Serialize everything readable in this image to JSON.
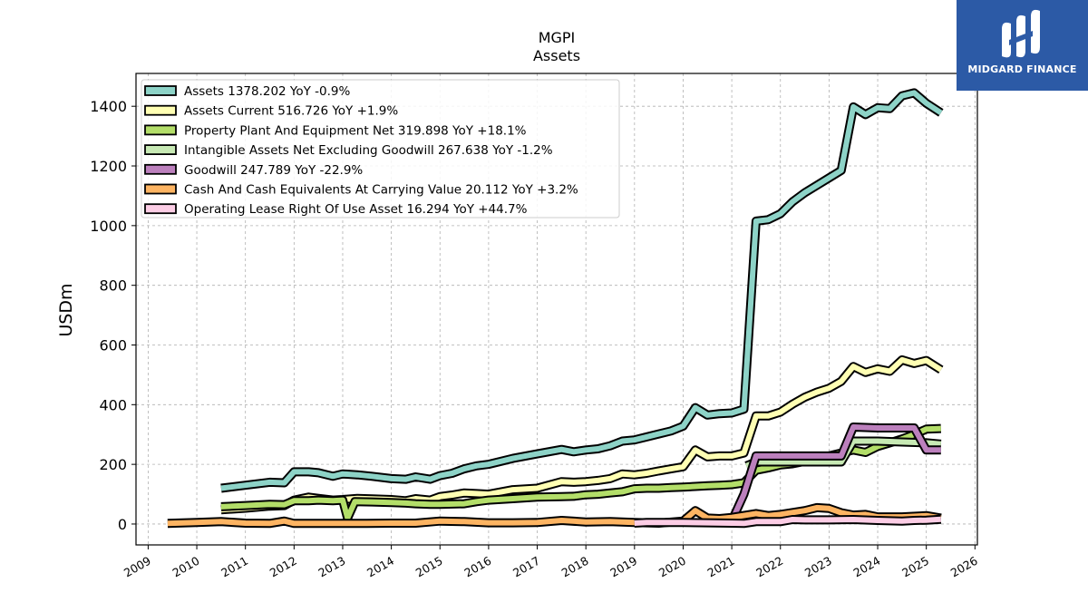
{
  "brand": {
    "name": "MIDGARD FINANCE",
    "logo_color": "#2c5aa6"
  },
  "chart_data": {
    "type": "line",
    "title": "MGPI",
    "subtitle": "Assets",
    "ylabel": "USDm",
    "xlabel": "",
    "xlim": [
      2008.75,
      2026.05
    ],
    "ylim": [
      -70,
      1510
    ],
    "x_ticks": [
      2009,
      2010,
      2011,
      2012,
      2013,
      2014,
      2015,
      2016,
      2017,
      2018,
      2019,
      2020,
      2021,
      2022,
      2023,
      2024,
      2025,
      2026
    ],
    "y_ticks": [
      0,
      200,
      400,
      600,
      800,
      1000,
      1200,
      1400
    ],
    "grid": true,
    "legend_position": "upper-left",
    "series": [
      {
        "name": "Assets",
        "legend_label": "Assets  1378.202 YoY -0.9%",
        "color": "#8dd3c7",
        "points": [
          [
            2010.5,
            120
          ],
          [
            2011.0,
            130
          ],
          [
            2011.5,
            140
          ],
          [
            2011.8,
            138
          ],
          [
            2012.0,
            175
          ],
          [
            2012.3,
            175
          ],
          [
            2012.5,
            172
          ],
          [
            2012.8,
            160
          ],
          [
            2013.0,
            168
          ],
          [
            2013.3,
            165
          ],
          [
            2013.6,
            160
          ],
          [
            2014.0,
            152
          ],
          [
            2014.3,
            150
          ],
          [
            2014.5,
            158
          ],
          [
            2014.8,
            150
          ],
          [
            2015.0,
            162
          ],
          [
            2015.25,
            170
          ],
          [
            2015.5,
            185
          ],
          [
            2015.75,
            195
          ],
          [
            2016.0,
            200
          ],
          [
            2016.5,
            220
          ],
          [
            2017.0,
            235
          ],
          [
            2017.5,
            250
          ],
          [
            2017.75,
            242
          ],
          [
            2018.0,
            248
          ],
          [
            2018.25,
            252
          ],
          [
            2018.5,
            262
          ],
          [
            2018.75,
            278
          ],
          [
            2019.0,
            282
          ],
          [
            2019.25,
            292
          ],
          [
            2019.5,
            302
          ],
          [
            2019.75,
            312
          ],
          [
            2020.0,
            328
          ],
          [
            2020.25,
            390
          ],
          [
            2020.5,
            365
          ],
          [
            2020.75,
            370
          ],
          [
            2021.0,
            372
          ],
          [
            2021.25,
            385
          ],
          [
            2021.5,
            1015
          ],
          [
            2021.75,
            1020
          ],
          [
            2022.0,
            1040
          ],
          [
            2022.25,
            1080
          ],
          [
            2022.5,
            1110
          ],
          [
            2022.75,
            1135
          ],
          [
            2023.0,
            1160
          ],
          [
            2023.25,
            1185
          ],
          [
            2023.5,
            1398
          ],
          [
            2023.75,
            1372
          ],
          [
            2024.0,
            1395
          ],
          [
            2024.25,
            1392
          ],
          [
            2024.5,
            1435
          ],
          [
            2024.75,
            1445
          ],
          [
            2025.0,
            1410
          ],
          [
            2025.3,
            1378
          ]
        ]
      },
      {
        "name": "Assets Current",
        "legend_label": "Assets Current  516.726 YoY +1.9%",
        "color": "#ffffb3",
        "points": [
          [
            2010.5,
            48
          ],
          [
            2011.0,
            53
          ],
          [
            2011.5,
            60
          ],
          [
            2011.8,
            62
          ],
          [
            2012.0,
            80
          ],
          [
            2012.3,
            90
          ],
          [
            2012.5,
            86
          ],
          [
            2012.8,
            80
          ],
          [
            2013.0,
            82
          ],
          [
            2013.3,
            86
          ],
          [
            2013.6,
            84
          ],
          [
            2014.0,
            82
          ],
          [
            2014.3,
            78
          ],
          [
            2014.5,
            85
          ],
          [
            2014.8,
            80
          ],
          [
            2015.0,
            92
          ],
          [
            2015.25,
            97
          ],
          [
            2015.5,
            104
          ],
          [
            2015.75,
            102
          ],
          [
            2016.0,
            100
          ],
          [
            2016.5,
            115
          ],
          [
            2017.0,
            120
          ],
          [
            2017.5,
            142
          ],
          [
            2017.75,
            140
          ],
          [
            2018.0,
            142
          ],
          [
            2018.25,
            146
          ],
          [
            2018.5,
            152
          ],
          [
            2018.75,
            168
          ],
          [
            2019.0,
            165
          ],
          [
            2019.25,
            170
          ],
          [
            2019.5,
            178
          ],
          [
            2019.75,
            185
          ],
          [
            2020.0,
            192
          ],
          [
            2020.25,
            248
          ],
          [
            2020.5,
            225
          ],
          [
            2020.75,
            228
          ],
          [
            2021.0,
            228
          ],
          [
            2021.25,
            238
          ],
          [
            2021.5,
            362
          ],
          [
            2021.75,
            362
          ],
          [
            2022.0,
            375
          ],
          [
            2022.25,
            402
          ],
          [
            2022.5,
            425
          ],
          [
            2022.75,
            442
          ],
          [
            2023.0,
            455
          ],
          [
            2023.25,
            478
          ],
          [
            2023.5,
            528
          ],
          [
            2023.75,
            508
          ],
          [
            2024.0,
            520
          ],
          [
            2024.25,
            512
          ],
          [
            2024.5,
            550
          ],
          [
            2024.75,
            538
          ],
          [
            2025.0,
            548
          ],
          [
            2025.3,
            517
          ]
        ]
      },
      {
        "name": "Property Plant And Equipment Net",
        "legend_label": "Property Plant And Equipment Net  319.898 YoY +18.1%",
        "color": "#b3de69",
        "points": [
          [
            2010.5,
            58
          ],
          [
            2011.0,
            62
          ],
          [
            2011.5,
            66
          ],
          [
            2011.8,
            65
          ],
          [
            2012.0,
            78
          ],
          [
            2012.3,
            78
          ],
          [
            2012.5,
            80
          ],
          [
            2012.8,
            78
          ],
          [
            2013.0,
            80
          ],
          [
            2013.1,
            20
          ],
          [
            2013.25,
            75
          ],
          [
            2013.6,
            74
          ],
          [
            2014.0,
            72
          ],
          [
            2014.3,
            70
          ],
          [
            2014.5,
            68
          ],
          [
            2014.8,
            66
          ],
          [
            2015.0,
            66
          ],
          [
            2015.5,
            68
          ],
          [
            2015.75,
            75
          ],
          [
            2016.0,
            80
          ],
          [
            2016.5,
            85
          ],
          [
            2017.0,
            90
          ],
          [
            2017.5,
            92
          ],
          [
            2017.75,
            93
          ],
          [
            2018.0,
            98
          ],
          [
            2018.25,
            100
          ],
          [
            2018.5,
            104
          ],
          [
            2018.75,
            108
          ],
          [
            2019.0,
            118
          ],
          [
            2019.25,
            120
          ],
          [
            2019.5,
            120
          ],
          [
            2019.75,
            122
          ],
          [
            2020.0,
            124
          ],
          [
            2020.25,
            126
          ],
          [
            2020.5,
            128
          ],
          [
            2020.75,
            130
          ],
          [
            2021.0,
            132
          ],
          [
            2021.25,
            138
          ],
          [
            2021.5,
            180
          ],
          [
            2021.75,
            188
          ],
          [
            2022.0,
            198
          ],
          [
            2022.25,
            202
          ],
          [
            2022.5,
            210
          ],
          [
            2022.75,
            218
          ],
          [
            2023.0,
            228
          ],
          [
            2023.25,
            238
          ],
          [
            2023.5,
            248
          ],
          [
            2023.75,
            240
          ],
          [
            2024.0,
            260
          ],
          [
            2024.25,
            272
          ],
          [
            2024.5,
            285
          ],
          [
            2024.75,
            300
          ],
          [
            2025.0,
            318
          ],
          [
            2025.3,
            320
          ]
        ]
      },
      {
        "name": "Intangible Assets Net Excluding Goodwill",
        "legend_label": "Intangible Assets Net Excluding Goodwill  267.638 YoY -1.2%",
        "color": "#c7e9b4",
        "points": [
          [
            2021.3,
            195
          ],
          [
            2021.5,
            208
          ],
          [
            2022.0,
            208
          ],
          [
            2022.5,
            208
          ],
          [
            2023.0,
            208
          ],
          [
            2023.25,
            208
          ],
          [
            2023.5,
            278
          ],
          [
            2024.0,
            278
          ],
          [
            2024.5,
            275
          ],
          [
            2025.0,
            272
          ],
          [
            2025.3,
            268
          ]
        ]
      },
      {
        "name": "Goodwill",
        "legend_label": "Goodwill  247.789 YoY -22.9%",
        "color": "#bc80bd",
        "points": [
          [
            2021.0,
            10
          ],
          [
            2021.25,
            100
          ],
          [
            2021.5,
            228
          ],
          [
            2022.0,
            228
          ],
          [
            2022.5,
            228
          ],
          [
            2023.0,
            228
          ],
          [
            2023.25,
            228
          ],
          [
            2023.5,
            325
          ],
          [
            2024.0,
            322
          ],
          [
            2024.5,
            322
          ],
          [
            2024.75,
            322
          ],
          [
            2025.0,
            248
          ],
          [
            2025.3,
            248
          ]
        ]
      },
      {
        "name": "Cash And Cash Equivalents At Carrying Value",
        "legend_label": "Cash And Cash Equivalents At Carrying Value  20.112 YoY +3.2%",
        "color": "#fdb462",
        "points": [
          [
            2009.4,
            2
          ],
          [
            2010.0,
            5
          ],
          [
            2010.5,
            8
          ],
          [
            2011.0,
            3
          ],
          [
            2011.5,
            2
          ],
          [
            2011.8,
            10
          ],
          [
            2012.0,
            2
          ],
          [
            2012.5,
            2
          ],
          [
            2013.0,
            2
          ],
          [
            2013.5,
            2
          ],
          [
            2014.0,
            3
          ],
          [
            2014.5,
            3
          ],
          [
            2015.0,
            10
          ],
          [
            2015.5,
            8
          ],
          [
            2016.0,
            4
          ],
          [
            2016.5,
            4
          ],
          [
            2017.0,
            5
          ],
          [
            2017.5,
            12
          ],
          [
            2018.0,
            7
          ],
          [
            2018.5,
            8
          ],
          [
            2019.0,
            5
          ],
          [
            2019.5,
            3
          ],
          [
            2020.0,
            10
          ],
          [
            2020.25,
            45
          ],
          [
            2020.5,
            20
          ],
          [
            2020.75,
            18
          ],
          [
            2021.0,
            22
          ],
          [
            2021.5,
            35
          ],
          [
            2021.75,
            28
          ],
          [
            2022.0,
            32
          ],
          [
            2022.5,
            45
          ],
          [
            2022.75,
            55
          ],
          [
            2023.0,
            52
          ],
          [
            2023.25,
            38
          ],
          [
            2023.5,
            30
          ],
          [
            2023.75,
            32
          ],
          [
            2024.0,
            24
          ],
          [
            2024.5,
            24
          ],
          [
            2025.0,
            28
          ],
          [
            2025.3,
            20
          ]
        ]
      },
      {
        "name": "Operating Lease Right Of Use Asset",
        "legend_label": "Operating Lease Right Of Use Asset  16.294 YoY +44.7%",
        "color": "#fccde5",
        "points": [
          [
            2019.0,
            3
          ],
          [
            2019.25,
            5
          ],
          [
            2019.5,
            5
          ],
          [
            2020.0,
            5
          ],
          [
            2020.5,
            4
          ],
          [
            2021.0,
            3
          ],
          [
            2021.25,
            2
          ],
          [
            2021.5,
            8
          ],
          [
            2022.0,
            8
          ],
          [
            2022.25,
            15
          ],
          [
            2022.5,
            14
          ],
          [
            2023.0,
            14
          ],
          [
            2023.5,
            15
          ],
          [
            2024.0,
            12
          ],
          [
            2024.5,
            10
          ],
          [
            2024.75,
            12
          ],
          [
            2025.0,
            13
          ],
          [
            2025.3,
            16
          ]
        ]
      }
    ]
  }
}
